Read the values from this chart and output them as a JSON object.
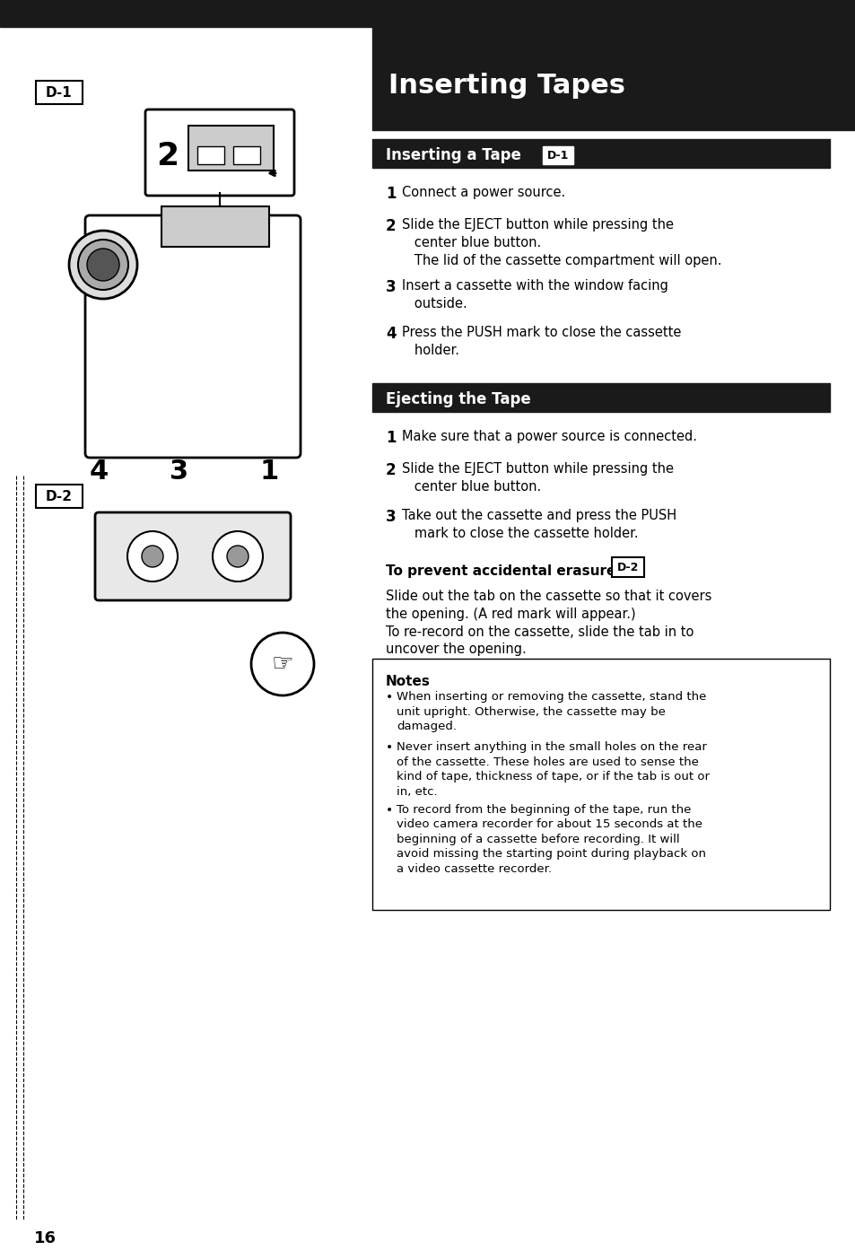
{
  "page_bg": "#ffffff",
  "top_bar_color": "#1a1a1a",
  "section_bar_color": "#1a1a1a",
  "notes_border_color": "#000000",
  "title_text": "Inserting Tapes",
  "title_text_color": "#ffffff",
  "subtitle1_text": "Inserting a Tape",
  "subtitle1_tag": "D-1",
  "subtitle2_text": "Ejecting the Tape",
  "prevent_text": "To prevent accidental erasure",
  "prevent_tag": "D-2",
  "d1_label": "D-1",
  "d2_label": "D-2",
  "page_number": "16",
  "insert_steps": [
    "1  Connect a power source.",
    "2  Slide the EJECT button while pressing the\n    center blue button.\n    The lid of the cassette compartment will open.",
    "3  Insert a cassette with the window facing\n    outside.",
    "4  Press the PUSH mark to close the cassette\n    holder."
  ],
  "eject_steps": [
    "1  Make sure that a power source is connected.",
    "2  Slide the EJECT button while pressing the\n    center blue button.",
    "3  Take out the cassette and press the PUSH\n    mark to close the cassette holder."
  ],
  "prevent_body": "Slide out the tab on the cassette so that it covers\nthe opening. (A red mark will appear.)\nTo re-record on the cassette, slide the tab in to\nuncover the opening.",
  "notes_title": "Notes",
  "notes_bullets": [
    "When inserting or removing the cassette, stand the\nunit upright. Otherwise, the cassette may be\ndamaged.",
    "Never insert anything in the small holes on the rear\nof the cassette. These holes are used to sense the\nkind of tape, thickness of tape, or if the tab is out or\nin, etc.",
    "To record from the beginning of the tape, run the\nvideo camera recorder for about 15 seconds at the\nbeginning of a cassette before recording. It will\navoid missing the starting point during playback on\na video cassette recorder."
  ]
}
